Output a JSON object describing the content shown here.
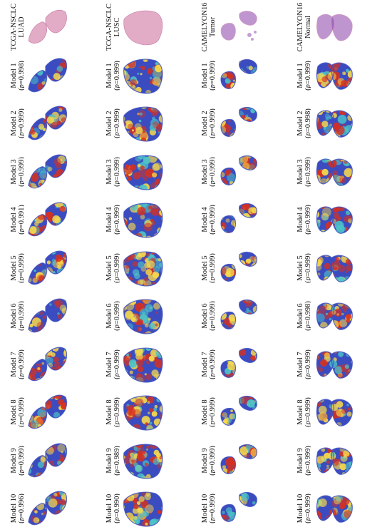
{
  "columns": [
    {
      "dataset": "TCGA-NSCLC",
      "class": "LUAD",
      "rows": [
        {
          "model": "Model 1",
          "p": "0.998"
        },
        {
          "model": "Model 2",
          "p": "0.999"
        },
        {
          "model": "Model 3",
          "p": "0.999"
        },
        {
          "model": "Model 4",
          "p": "0.991"
        },
        {
          "model": "Model 5",
          "p": "0.999"
        },
        {
          "model": "Model 6",
          "p": "0.999"
        },
        {
          "model": "Model 7",
          "p": "0.999"
        },
        {
          "model": "Model 8",
          "p": "0.999"
        },
        {
          "model": "Model 9",
          "p": "0.999"
        },
        {
          "model": "Model 10",
          "p": "0.996"
        }
      ]
    },
    {
      "dataset": "TCGA-NSCLC",
      "class": "LUSC",
      "rows": [
        {
          "model": "Model 1",
          "p": "0.999"
        },
        {
          "model": "Model 2",
          "p": "0.999"
        },
        {
          "model": "Model 3",
          "p": "0.999"
        },
        {
          "model": "Model 4",
          "p": "0.999"
        },
        {
          "model": "Model 5",
          "p": "0.999"
        },
        {
          "model": "Model 6",
          "p": "0.999"
        },
        {
          "model": "Model 7",
          "p": "0.999"
        },
        {
          "model": "Model 8",
          "p": "0.999"
        },
        {
          "model": "Model 9",
          "p": "0.989"
        },
        {
          "model": "Model 10",
          "p": "0.990"
        }
      ]
    },
    {
      "dataset": "CAMELYON16",
      "class": "Tumor",
      "rows": [
        {
          "model": "Model 1",
          "p": "0.999"
        },
        {
          "model": "Model 2",
          "p": "0.999"
        },
        {
          "model": "Model 3",
          "p": "0.999"
        },
        {
          "model": "Model 4",
          "p": "0.999"
        },
        {
          "model": "Model 5",
          "p": "0.999"
        },
        {
          "model": "Model 6",
          "p": "0.999"
        },
        {
          "model": "Model 7",
          "p": "0.999"
        },
        {
          "model": "Model 8",
          "p": "0.999"
        },
        {
          "model": "Model 9",
          "p": "0.999"
        },
        {
          "model": "Model 10",
          "p": "0.999"
        }
      ]
    },
    {
      "dataset": "CAMELYON16",
      "class": "Normal",
      "rows": [
        {
          "model": "Model 1",
          "p": "0.999"
        },
        {
          "model": "Model 2",
          "p": "0.998"
        },
        {
          "model": "Model 3",
          "p": "0.999"
        },
        {
          "model": "Model 4",
          "p": "0.999"
        },
        {
          "model": "Model 5",
          "p": "0.999"
        },
        {
          "model": "Model 6",
          "p": "0.998"
        },
        {
          "model": "Model 7",
          "p": "0.999"
        },
        {
          "model": "Model 8",
          "p": "0.999"
        },
        {
          "model": "Model 9",
          "p": "0.999"
        },
        {
          "model": "Model 10",
          "p": "0.999"
        }
      ]
    }
  ],
  "p_symbol": "p",
  "colors": {
    "he_stain": "#d98fb4",
    "he_stain_dark": "#b24a85",
    "camelyon_stain": "#8a3fa8",
    "heat_high": "#d7301f",
    "heat_mid": "#f7d94c",
    "heat_low": "#3b4cc0",
    "heat_cyan": "#4cc3c7",
    "background": "#ffffff"
  }
}
